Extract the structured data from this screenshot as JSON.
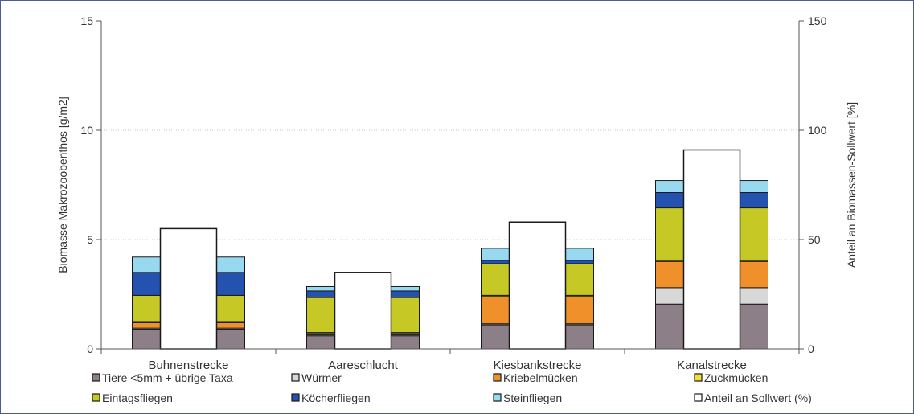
{
  "chart_data": {
    "type": "bar",
    "stacked": true,
    "categories": [
      "Buhnenstrecke",
      "Aareschlucht",
      "Kiesbankstrecke",
      "Kanalstrecke"
    ],
    "ylabel": "Biomasse Makrozoobenthos [g/m2]",
    "y2label": "Anteil an Biomassen-Sollwert [%]",
    "ylim": [
      0,
      15
    ],
    "y2lim": [
      0,
      150
    ],
    "yticks": [
      0,
      5,
      10,
      15
    ],
    "y2ticks": [
      0,
      50,
      100,
      150
    ],
    "grid": true,
    "legend_position": "bottom",
    "series": [
      {
        "name": "Tiere <5mm + übrige Taxa",
        "color": "#8c7f88",
        "values": [
          0.9,
          0.6,
          1.1,
          2.05
        ]
      },
      {
        "name": "Würmer",
        "color": "#d8d8d8",
        "values": [
          0.05,
          0.05,
          0.05,
          0.75
        ]
      },
      {
        "name": "Kriebelmücken",
        "color": "#f0902a",
        "values": [
          0.25,
          0.05,
          1.25,
          1.2
        ]
      },
      {
        "name": "Zuckmücken",
        "color": "#f2e230",
        "values": [
          0.05,
          0.05,
          0.05,
          0.05
        ]
      },
      {
        "name": "Eintagsfliegen",
        "color": "#c5c825",
        "values": [
          1.2,
          1.6,
          1.45,
          2.4
        ]
      },
      {
        "name": "Köcherfliegen",
        "color": "#2452b0",
        "values": [
          1.05,
          0.3,
          0.15,
          0.7
        ]
      },
      {
        "name": "Steinfliegen",
        "color": "#99d9ef",
        "values": [
          0.7,
          0.2,
          0.55,
          0.55
        ]
      }
    ],
    "secondary_series": {
      "name": "Anteil an Sollwert (%)",
      "color": "#ffffff",
      "axis": "y2",
      "values": [
        55,
        35,
        58,
        91
      ]
    }
  }
}
